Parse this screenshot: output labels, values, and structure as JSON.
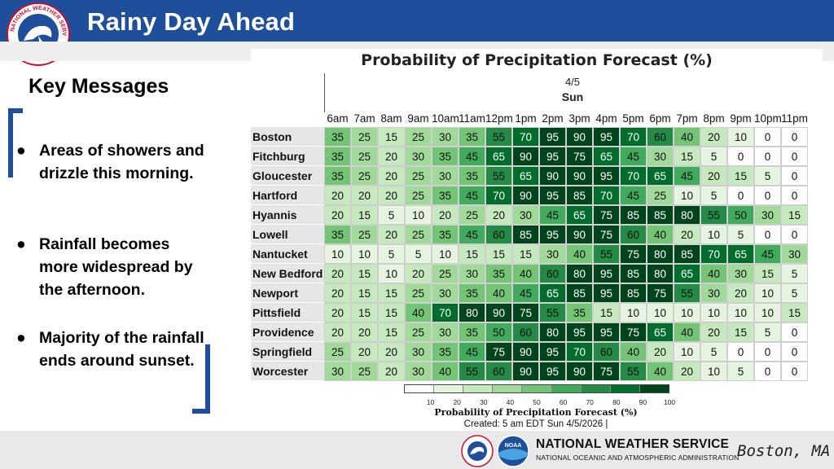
{
  "header": {
    "title": "Rainy Day Ahead"
  },
  "logo": {
    "text": "NATIONAL WEATHER SERVICE"
  },
  "key_messages": {
    "title": "Key Messages",
    "bullet": "●",
    "items": [
      "Areas of showers and drizzle this morning.",
      "Rainfall becomes more widespread by the afternoon.",
      "Majority of the rainfall ends around sunset."
    ]
  },
  "chart": {
    "title": "Probability of Precipitation Forecast (%)",
    "date": "4/5",
    "day": "Sun",
    "hours": [
      "6am",
      "7am",
      "8am",
      "9am",
      "10am",
      "11am",
      "12pm",
      "1pm",
      "2pm",
      "3pm",
      "4pm",
      "5pm",
      "6pm",
      "7pm",
      "8pm",
      "9pm",
      "10pm",
      "11pm"
    ],
    "colorbar_ticks": [
      "10",
      "20",
      "30",
      "40",
      "50",
      "60",
      "70",
      "80",
      "90",
      "100"
    ],
    "colorbar_title": "Probability of Precipitation Forecast (%)",
    "created": "Created: 5 am EDT Sun 4/5/2026  |",
    "colors": [
      "#ffffff",
      "#e5f5e0",
      "#c7e9c0",
      "#a1d99b",
      "#74c476",
      "#41ab5d",
      "#238b45",
      "#006d2c",
      "#00441b"
    ]
  },
  "chart_data": {
    "type": "heatmap",
    "title": "Probability of Precipitation Forecast (%)",
    "x": [
      "6am",
      "7am",
      "8am",
      "9am",
      "10am",
      "11am",
      "12pm",
      "1pm",
      "2pm",
      "3pm",
      "4pm",
      "5pm",
      "6pm",
      "7pm",
      "8pm",
      "9pm",
      "10pm",
      "11pm"
    ],
    "rows": [
      {
        "name": "Boston",
        "values": [
          35,
          25,
          15,
          25,
          30,
          35,
          55,
          70,
          95,
          90,
          95,
          70,
          60,
          40,
          20,
          10,
          0,
          0
        ]
      },
      {
        "name": "Fitchburg",
        "values": [
          35,
          25,
          20,
          30,
          35,
          45,
          65,
          90,
          95,
          75,
          65,
          45,
          30,
          15,
          5,
          0,
          0,
          0
        ]
      },
      {
        "name": "Gloucester",
        "values": [
          35,
          25,
          20,
          25,
          30,
          35,
          55,
          65,
          90,
          90,
          95,
          70,
          65,
          45,
          20,
          15,
          5,
          0
        ]
      },
      {
        "name": "Hartford",
        "values": [
          20,
          20,
          20,
          25,
          35,
          45,
          70,
          90,
          95,
          85,
          70,
          45,
          25,
          10,
          5,
          0,
          0,
          0
        ]
      },
      {
        "name": "Hyannis",
        "values": [
          20,
          15,
          5,
          10,
          20,
          25,
          20,
          30,
          45,
          65,
          75,
          85,
          85,
          80,
          55,
          50,
          30,
          15
        ]
      },
      {
        "name": "Lowell",
        "values": [
          35,
          25,
          20,
          25,
          35,
          45,
          60,
          85,
          95,
          90,
          75,
          60,
          40,
          20,
          10,
          5,
          0,
          0
        ]
      },
      {
        "name": "Nantucket",
        "values": [
          10,
          10,
          5,
          5,
          10,
          15,
          15,
          15,
          30,
          40,
          55,
          75,
          80,
          85,
          70,
          65,
          45,
          30
        ]
      },
      {
        "name": "New Bedford",
        "values": [
          20,
          15,
          10,
          20,
          25,
          30,
          35,
          40,
          60,
          80,
          95,
          85,
          80,
          65,
          40,
          30,
          15,
          5
        ]
      },
      {
        "name": "Newport",
        "values": [
          20,
          15,
          15,
          25,
          30,
          35,
          40,
          45,
          65,
          85,
          95,
          85,
          75,
          55,
          30,
          20,
          10,
          5
        ]
      },
      {
        "name": "Pittsfield",
        "values": [
          20,
          15,
          15,
          40,
          70,
          80,
          90,
          75,
          55,
          35,
          15,
          10,
          10,
          10,
          10,
          10,
          10,
          15
        ]
      },
      {
        "name": "Providence",
        "values": [
          20,
          20,
          15,
          25,
          30,
          35,
          50,
          60,
          80,
          95,
          95,
          75,
          65,
          40,
          20,
          15,
          5,
          0
        ]
      },
      {
        "name": "Springfield",
        "values": [
          25,
          20,
          20,
          30,
          35,
          45,
          75,
          90,
          95,
          70,
          60,
          40,
          20,
          10,
          5,
          0,
          0,
          0
        ]
      },
      {
        "name": "Worcester",
        "values": [
          30,
          25,
          20,
          30,
          40,
          55,
          60,
          90,
          95,
          90,
          75,
          55,
          40,
          20,
          10,
          5,
          0,
          0
        ]
      }
    ],
    "colorbar_range": [
      0,
      100
    ]
  },
  "footer": {
    "org": "NATIONAL WEATHER SERVICE",
    "sub": "NATIONAL OCEANIC AND ATMOSPHERIC ADMINISTRATION",
    "office": "Boston, MA",
    "noaa_logo_text": "NOAA"
  }
}
